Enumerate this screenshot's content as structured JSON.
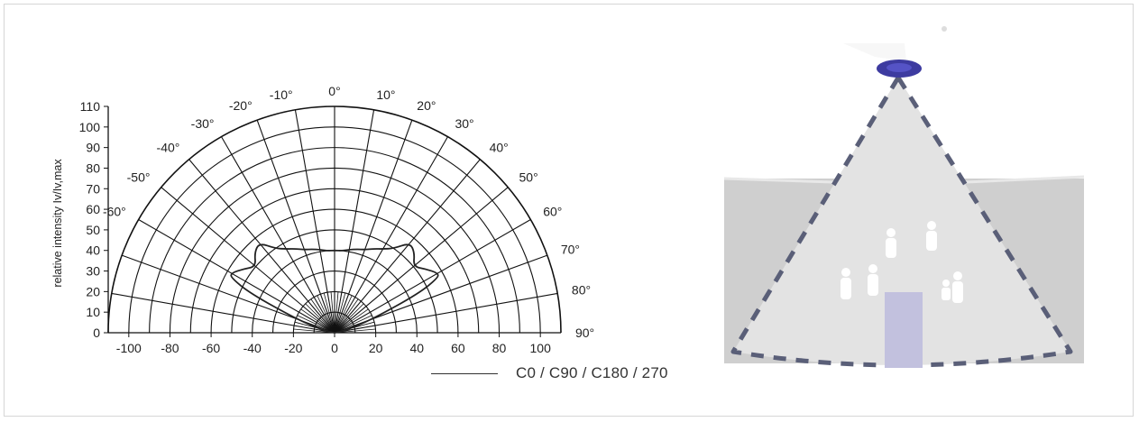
{
  "chart_data": {
    "type": "polar",
    "ylabel": "relative intensity Iv/Iv,max",
    "radial_ticks": [
      "0",
      "10",
      "20",
      "30",
      "40",
      "50",
      "60",
      "70",
      "80",
      "90",
      "100",
      "110"
    ],
    "radial_tick_values": [
      0,
      10,
      20,
      30,
      40,
      50,
      60,
      70,
      80,
      90,
      100,
      110
    ],
    "x_ticks": [
      "-100",
      "-80",
      "-60",
      "-40",
      "-20",
      "0",
      "20",
      "40",
      "60",
      "80",
      "100"
    ],
    "x_tick_values": [
      -100,
      -80,
      -60,
      -40,
      -20,
      0,
      20,
      40,
      60,
      80,
      100
    ],
    "angle_labels": [
      "-60°",
      "-50°",
      "-40°",
      "-30°",
      "-20°",
      "-10°",
      "0°",
      "10°",
      "20°",
      "30°",
      "40°",
      "50°",
      "60°",
      "70°",
      "80°",
      "90°"
    ],
    "angle_values": [
      -60,
      -50,
      -40,
      -30,
      -20,
      -10,
      0,
      10,
      20,
      30,
      40,
      50,
      60,
      70,
      80,
      90
    ],
    "rlim": [
      0,
      110
    ],
    "angle_range": [
      -90,
      90
    ],
    "grid": true,
    "series": [
      {
        "name": "C0 / C90 / C180 / 270",
        "angles": [
          0,
          5,
          10,
          15,
          20,
          25,
          30,
          35,
          40,
          45,
          50,
          55,
          60,
          62,
          65,
          70,
          75,
          80,
          90
        ],
        "values": [
          40,
          40,
          41,
          42,
          43,
          45,
          47,
          50,
          57,
          55,
          50,
          54,
          58,
          57,
          45,
          20,
          8,
          3,
          0
        ]
      }
    ]
  },
  "legend": {
    "label": "C0 / C90 / C180 / 270"
  },
  "colors": {
    "curve": "#222222",
    "grid": "#111111",
    "legend_line": "#333333",
    "illustration_wall": "#cfcfcf",
    "illustration_cone": "#e4e4e4",
    "illustration_dash": "#5a5f78",
    "illustration_luminaire": "#3d3ba0",
    "illustration_door": "#c2c1de",
    "illustration_person": "#ffffff"
  },
  "illustration": {
    "luminaire_icon": "ceiling-luminaire-icon",
    "person_icon": "person-icon",
    "person_count": 6,
    "door_icon": "door-icon"
  }
}
